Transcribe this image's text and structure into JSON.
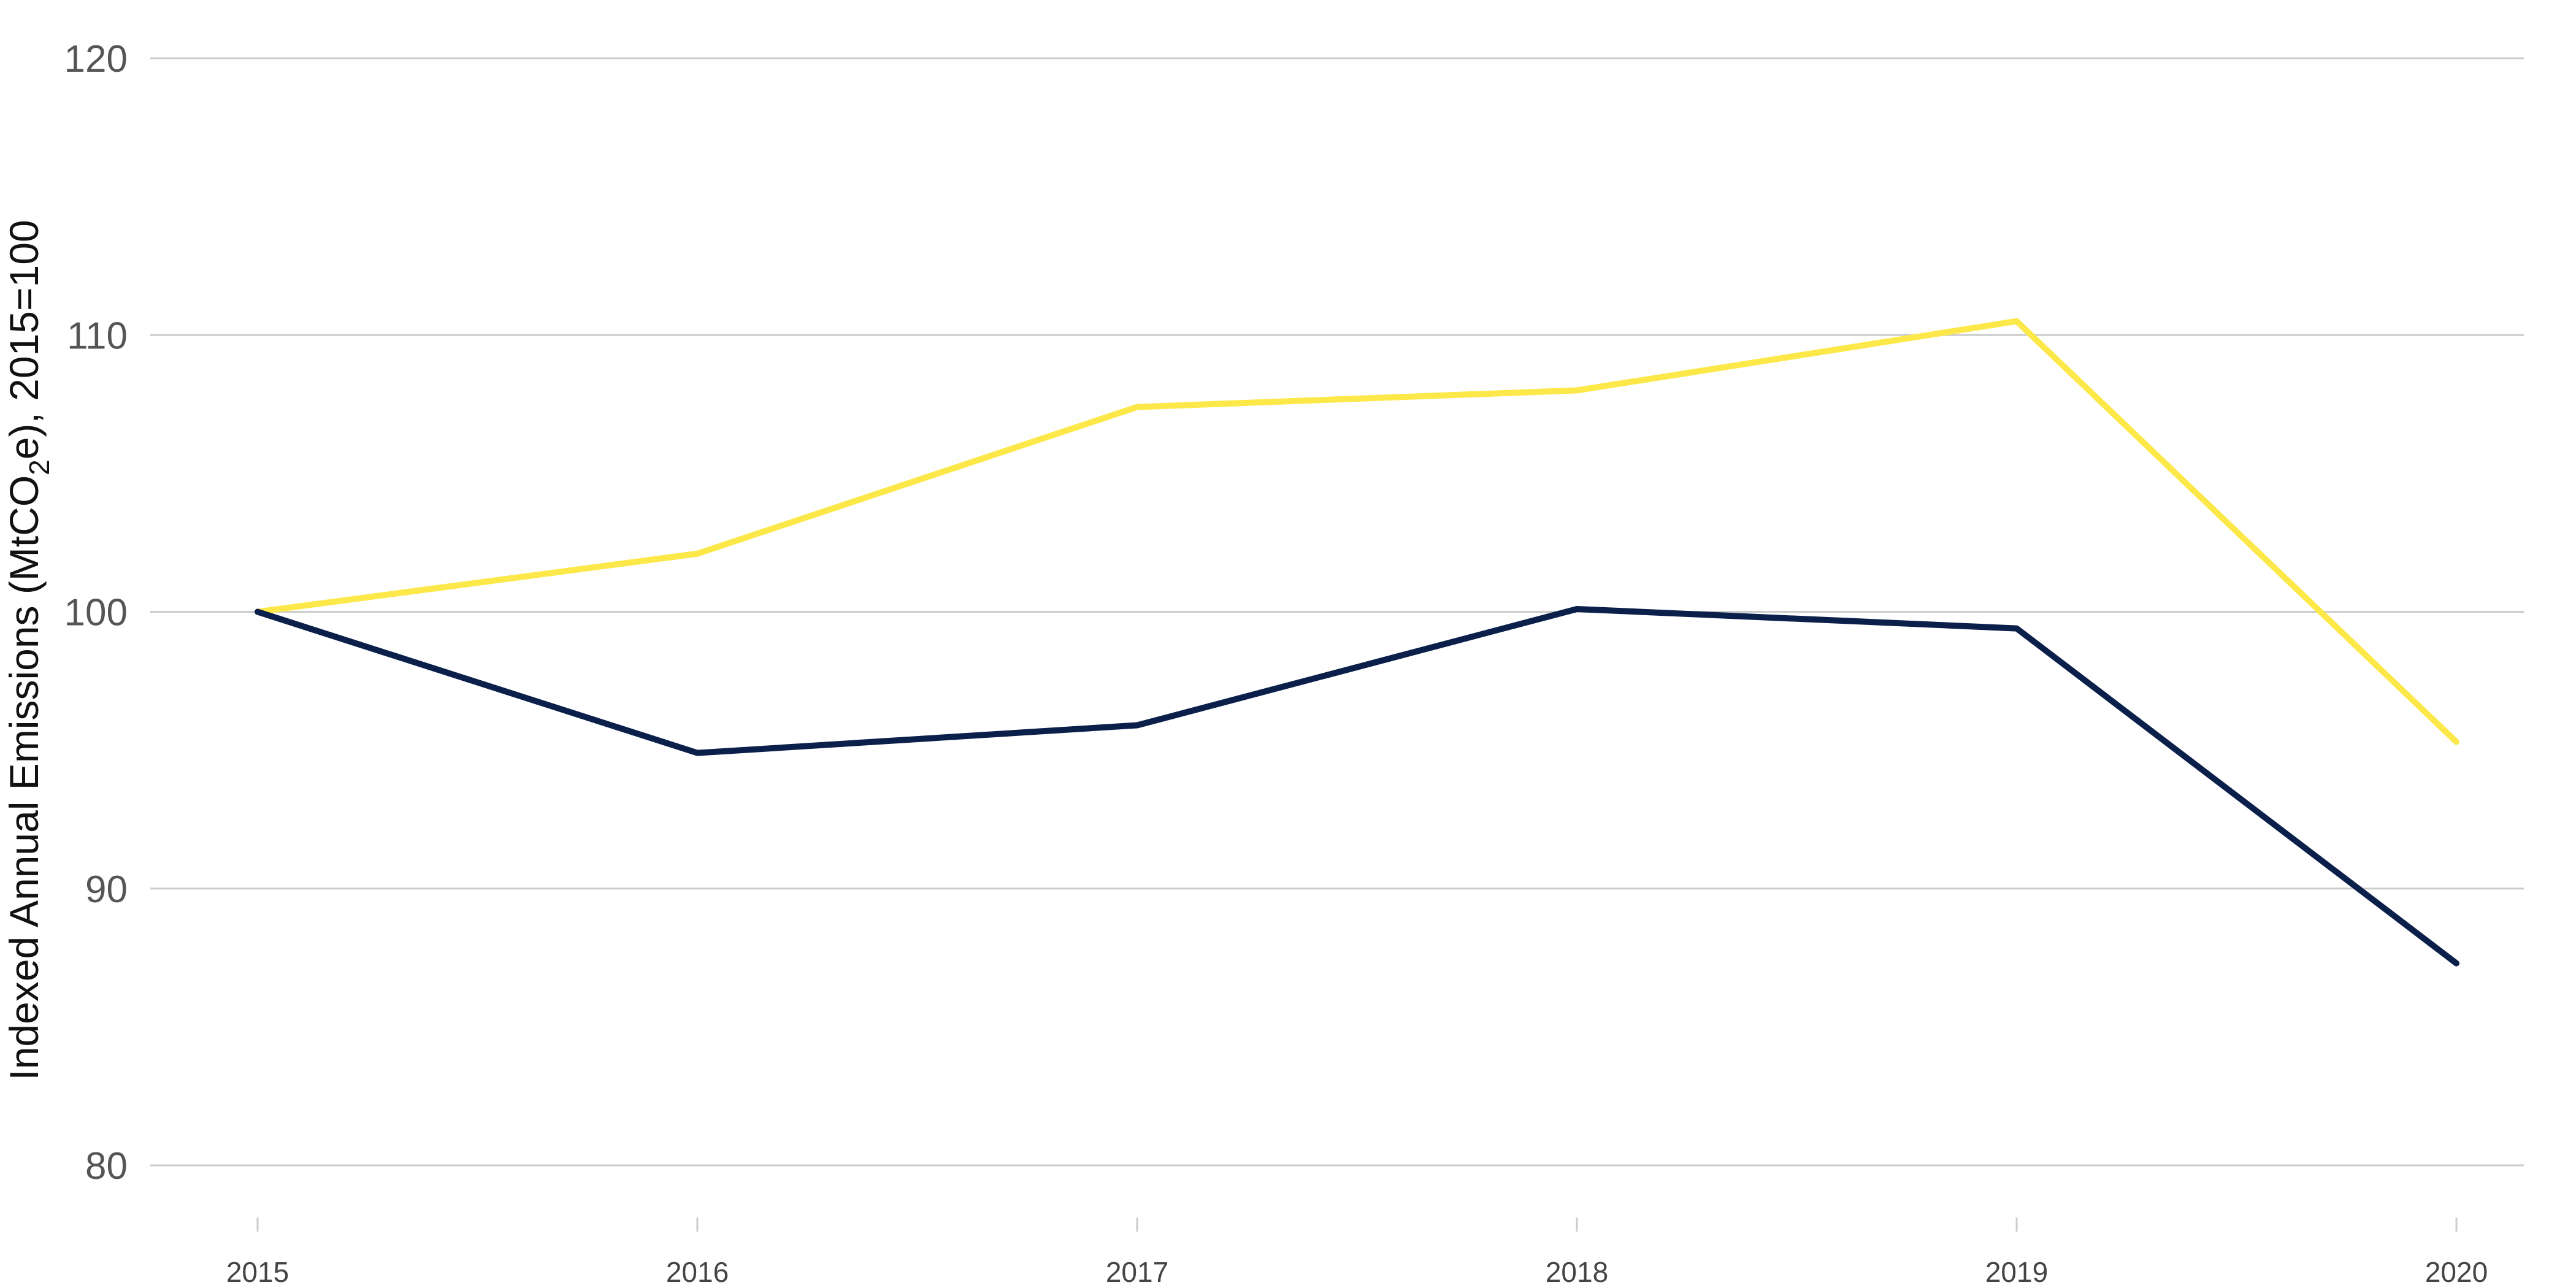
{
  "chart_data": {
    "type": "line",
    "title": "",
    "xlabel": "",
    "ylabel": {
      "prefix": "Indexed Annual Emissions  (MtCO",
      "subscript": "2",
      "suffix": "e), 2015=100"
    },
    "x": [
      "2015",
      "2016",
      "2017",
      "2018",
      "2019",
      "2020"
    ],
    "xlim": [
      2015,
      2020
    ],
    "ylim": [
      80,
      120
    ],
    "yticks": [
      "80",
      "90",
      "100",
      "110",
      "120"
    ],
    "grid": true,
    "legend": "none",
    "series": [
      {
        "color": "#FDE84A",
        "values": [
          100,
          102.1,
          107.4,
          108.0,
          110.5,
          95.3
        ]
      },
      {
        "color": "#0B1F4B",
        "values": [
          100,
          94.9,
          95.9,
          100.1,
          99.4,
          87.3
        ]
      }
    ]
  }
}
